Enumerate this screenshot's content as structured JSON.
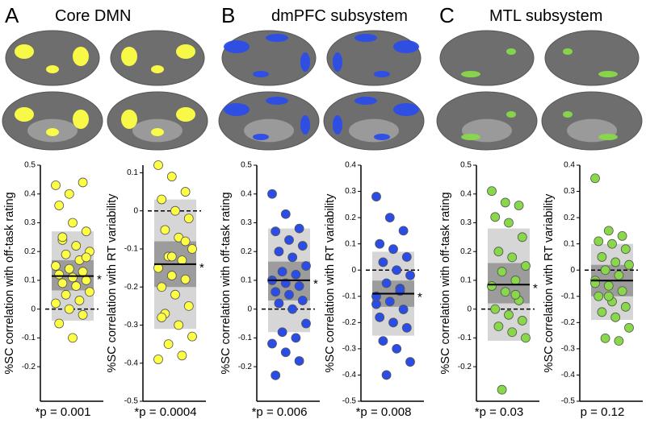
{
  "panels": [
    {
      "letter": "A",
      "title": "Core DMN"
    },
    {
      "letter": "B",
      "title": "dmPFC subsystem"
    },
    {
      "letter": "C",
      "title": "MTL subsystem"
    }
  ],
  "chart_data": [
    {
      "type": "strip",
      "y_label": "%SC correlation with off-task rating",
      "color": "#ffff44",
      "ylim": [
        -0.32,
        0.5
      ],
      "yticks": [
        -0.2,
        -0.1,
        0,
        0.1,
        0.2,
        0.3,
        0.4,
        0.5
      ],
      "values": [
        0.43,
        0.4,
        0.44,
        0.36,
        0.3,
        0.27,
        0.24,
        0.22,
        0.2,
        0.19,
        0.17,
        0.15,
        0.14,
        0.13,
        0.12,
        0.11,
        0.1,
        0.09,
        0.08,
        0.06,
        0.05,
        0.03,
        0.02,
        0,
        -0.02,
        -0.05,
        -0.1,
        0.18,
        0.25
      ],
      "mean": 0.115,
      "inner_box": [
        0.065,
        0.17
      ],
      "outer_box": [
        -0.04,
        0.27
      ],
      "significance_marker": "*",
      "annotation": "*p = 0.001"
    },
    {
      "type": "strip",
      "y_label": "%SC correlation with RT variability",
      "color": "#ffff44",
      "ylim": [
        -0.5,
        0.12
      ],
      "yticks": [
        -0.5,
        -0.4,
        -0.3,
        -0.2,
        -0.1,
        0,
        0.1
      ],
      "values": [
        0.12,
        0.09,
        0.05,
        0.03,
        0,
        -0.02,
        -0.05,
        -0.07,
        -0.1,
        -0.12,
        -0.13,
        -0.15,
        -0.17,
        -0.18,
        -0.2,
        -0.22,
        -0.25,
        -0.27,
        -0.3,
        -0.33,
        -0.35,
        -0.38,
        -0.39,
        -0.12,
        -0.08,
        -0.28
      ],
      "mean": -0.14,
      "inner_box": [
        -0.2,
        -0.08
      ],
      "outer_box": [
        -0.31,
        0.03
      ],
      "significance_marker": "*",
      "annotation": "*p = 0.0004"
    },
    {
      "type": "strip",
      "y_label": "%SC correlation with off-task rating",
      "color": "#2a4de8",
      "ylim": [
        -0.32,
        0.5
      ],
      "yticks": [
        -0.2,
        -0.1,
        0,
        0.1,
        0.2,
        0.3,
        0.4,
        0.5
      ],
      "values": [
        0.4,
        0.33,
        0.28,
        0.27,
        0.24,
        0.22,
        0.2,
        0.18,
        0.15,
        0.13,
        0.12,
        0.1,
        0.09,
        0.08,
        0.06,
        0.05,
        0.03,
        0.02,
        0,
        -0.05,
        -0.08,
        -0.1,
        -0.12,
        -0.15,
        -0.18,
        -0.23
      ],
      "mean": 0.1,
      "inner_box": [
        0.03,
        0.165
      ],
      "outer_box": [
        -0.08,
        0.28
      ],
      "significance_marker": "*",
      "annotation": "*p = 0.006"
    },
    {
      "type": "strip",
      "y_label": "%SC correlation with RT variability",
      "color": "#2a4de8",
      "ylim": [
        -0.5,
        0.4
      ],
      "yticks": [
        -0.5,
        -0.4,
        -0.3,
        -0.2,
        -0.1,
        0,
        0.1,
        0.2,
        0.3,
        0.4
      ],
      "values": [
        0.28,
        0.2,
        0.15,
        0.1,
        0.08,
        0.05,
        0.03,
        0,
        -0.02,
        -0.05,
        -0.07,
        -0.1,
        -0.12,
        -0.15,
        -0.18,
        -0.2,
        -0.22,
        -0.27,
        -0.3,
        -0.35,
        -0.4,
        -0.08,
        -0.13
      ],
      "mean": -0.09,
      "inner_box": [
        -0.14,
        -0.04
      ],
      "outer_box": [
        -0.25,
        0.07
      ],
      "significance_marker": "*",
      "annotation": "*p = 0.008"
    },
    {
      "type": "strip",
      "y_label": "%SC correlation with off-task rating",
      "color": "#88d84a",
      "ylim": [
        -0.32,
        0.5
      ],
      "yticks": [
        -0.2,
        -0.1,
        0,
        0.1,
        0.2,
        0.3,
        0.4,
        0.5
      ],
      "values": [
        0.41,
        0.37,
        0.36,
        0.32,
        0.3,
        0.25,
        0.2,
        0.18,
        0.15,
        0.13,
        0.1,
        0.08,
        0.06,
        0.03,
        0,
        -0.02,
        -0.04,
        -0.06,
        -0.08,
        -0.1,
        -0.28,
        0.05
      ],
      "mean": 0.085,
      "inner_box": [
        0.02,
        0.16
      ],
      "outer_box": [
        -0.11,
        0.28
      ],
      "significance_marker": "*",
      "annotation": "*p = 0.03"
    },
    {
      "type": "strip",
      "y_label": "%SC correlation with RT variability",
      "color": "#88d84a",
      "ylim": [
        -0.5,
        0.4
      ],
      "yticks": [
        -0.5,
        -0.4,
        -0.3,
        -0.2,
        -0.1,
        0,
        0.1,
        0.2,
        0.3,
        0.4
      ],
      "values": [
        0.35,
        0.15,
        0.13,
        0.11,
        0.1,
        0.08,
        0.05,
        0.03,
        0.02,
        0,
        -0.02,
        -0.04,
        -0.06,
        -0.08,
        -0.1,
        -0.12,
        -0.14,
        -0.16,
        -0.18,
        -0.22,
        -0.26,
        -0.27,
        -0.05,
        -0.1
      ],
      "mean": -0.04,
      "inner_box": [
        -0.1,
        0.02
      ],
      "outer_box": [
        -0.19,
        0.1
      ],
      "annotation": "p = 0.12"
    }
  ]
}
